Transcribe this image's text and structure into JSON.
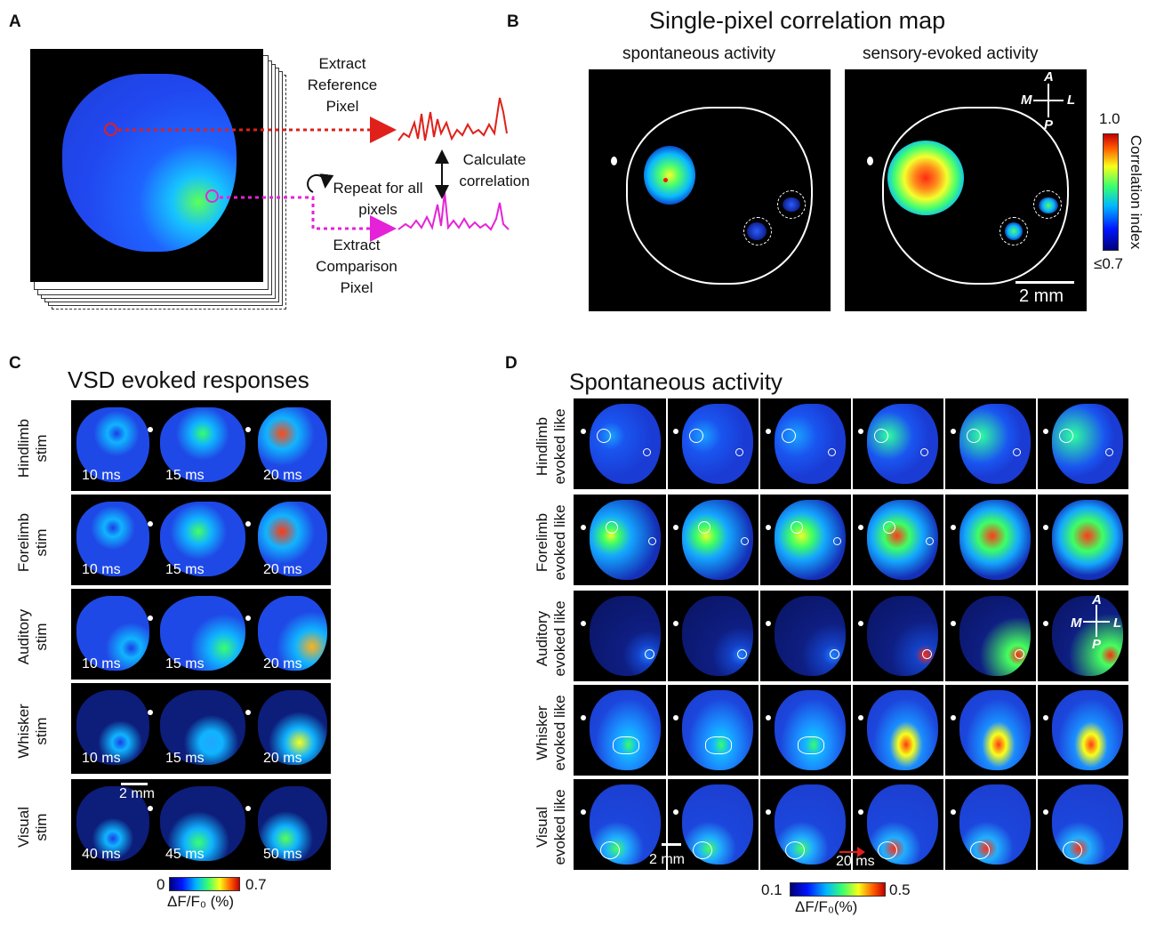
{
  "panel_a": {
    "label": "A",
    "extract_reference": "Extract Reference Pixel",
    "calculate": "Calculate correlation",
    "repeat": "Repeat for all pixels",
    "extract_comparison": "Extract Comparison Pixel"
  },
  "panel_b": {
    "label": "B",
    "title": "Single-pixel correlation map",
    "sub_left": "spontaneous activity",
    "sub_right": "sensory-evoked activity",
    "cbar_max": "1.0",
    "cbar_min": "≤0.7",
    "cbar_label": "Correlation index",
    "scale": "2 mm",
    "compass": {
      "a": "A",
      "m": "M",
      "l": "L",
      "p": "P"
    }
  },
  "panel_c": {
    "label": "C",
    "title": "VSD evoked responses",
    "rows": [
      {
        "line1": "Hindlimb",
        "line2": "stim",
        "times": [
          "10 ms",
          "15 ms",
          "20 ms"
        ]
      },
      {
        "line1": "Forelimb",
        "line2": "stim",
        "times": [
          "10 ms",
          "15 ms",
          "20 ms"
        ]
      },
      {
        "line1": "Auditory",
        "line2": "stim",
        "times": [
          "10 ms",
          "15 ms",
          "20 ms"
        ]
      },
      {
        "line1": "Whisker",
        "line2": "stim",
        "times": [
          "10 ms",
          "15 ms",
          "20 ms"
        ]
      },
      {
        "line1": "Visual",
        "line2": "stim",
        "times": [
          "40 ms",
          "45 ms",
          "50 ms"
        ]
      }
    ],
    "scale": "2 mm",
    "cbar_min": "0",
    "cbar_max": "0.7",
    "cbar_label": "ΔF/F₀ (%)"
  },
  "panel_d": {
    "label": "D",
    "title": "Spontaneous activity",
    "rows": [
      {
        "line1": "Hindlimb",
        "line2": "evoked like"
      },
      {
        "line1": "Forelimb",
        "line2": "evoked like"
      },
      {
        "line1": "Auditory",
        "line2": "evoked like"
      },
      {
        "line1": "Whisker",
        "line2": "evoked like"
      },
      {
        "line1": "Visual",
        "line2": "evoked like"
      }
    ],
    "scale": "2 mm",
    "interval": "20 ms",
    "cbar_min": "0.1",
    "cbar_max": "0.5",
    "cbar_label": "ΔF/F₀(%)",
    "compass": {
      "a": "A",
      "m": "M",
      "l": "L",
      "p": "P"
    }
  },
  "colors": {
    "reference": "#e0201b",
    "comparison": "#e622d8"
  }
}
